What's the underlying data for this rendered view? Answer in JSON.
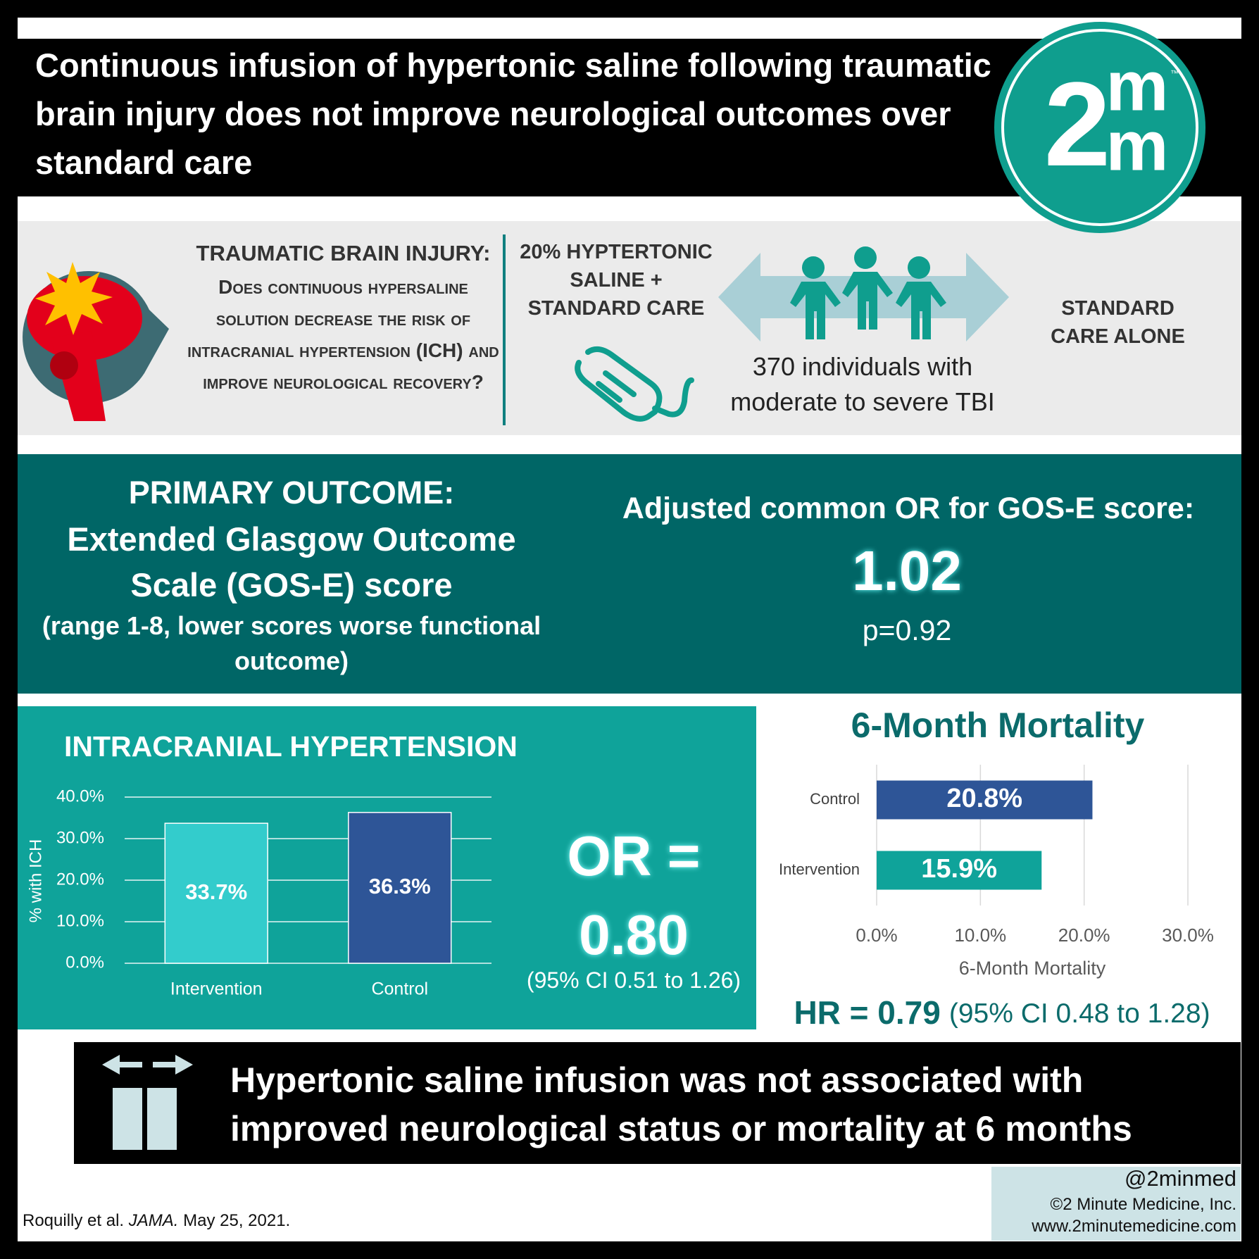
{
  "header": {
    "title": "Continuous infusion of hypertonic saline following traumatic brain injury does not improve neurological outcomes over standard care"
  },
  "logo": {
    "digit": "2",
    "top": "m",
    "bottom": "m",
    "mark": "™"
  },
  "question": {
    "heading": "TRAUMATIC BRAIN INJURY:",
    "text": "Does continuous hypersaline solution decrease the risk of intracranial hypertension (ICH) and improve neurological recovery?"
  },
  "design": {
    "intervention": "20% HYPTERTONIC SALINE + STANDARD CARE",
    "population": "370 individuals with moderate to severe TBI",
    "control": "STANDARD CARE ALONE"
  },
  "primary": {
    "heading": "PRIMARY OUTCOME:",
    "measure": "Extended Glasgow Outcome Scale (GOS-E) score",
    "note": "(range 1-8, lower scores worse functional outcome)",
    "result_label": "Adjusted common OR for GOS-E score:",
    "result": "1.02",
    "p": "p=0.92"
  },
  "chart_data": [
    {
      "type": "bar",
      "title": "INTRACRANIAL HYPERTENSION",
      "y_label": "% with ICH",
      "categories": [
        "Intervention",
        "Control"
      ],
      "values": [
        33.7,
        36.3
      ],
      "value_labels": [
        "33.7%",
        "36.3%"
      ],
      "colors": [
        "#33cccc",
        "#2e5597"
      ],
      "ylim": [
        0,
        40
      ],
      "yticks": [
        {
          "value": 0,
          "label": "0.0%"
        },
        {
          "value": 10,
          "label": "10.0%"
        },
        {
          "value": 20,
          "label": "20.0%"
        },
        {
          "value": 30,
          "label": "30.0%"
        },
        {
          "value": 40,
          "label": "40.0%"
        }
      ],
      "grid": true,
      "annotation": "OR = 0.80",
      "ci": "(95% CI 0.51 to 1.26)"
    },
    {
      "type": "barh",
      "title": "6-Month Mortality",
      "x_label": "6-Month Mortality",
      "categories": [
        "Control",
        "Intervention"
      ],
      "values": [
        20.8,
        15.9
      ],
      "value_labels": [
        "20.8%",
        "15.9%"
      ],
      "colors": [
        "#2e5597",
        "#0fa39a"
      ],
      "xlim": [
        0,
        30
      ],
      "xticks": [
        {
          "value": 0,
          "label": "0.0%"
        },
        {
          "value": 10,
          "label": "10.0%"
        },
        {
          "value": 20,
          "label": "20.0%"
        },
        {
          "value": 30,
          "label": "30.0%"
        }
      ],
      "grid": true,
      "annotation": "HR = 0.79",
      "ci": "(95% CI 0.48 to 1.28)"
    }
  ],
  "conclusion": {
    "text": "Hypertonic saline infusion was not associated with improved neurological status or mortality at 6 months"
  },
  "footer": {
    "authors": "Roquilly et al.",
    "journal": "JAMA.",
    "date": "May 25, 2021.",
    "handle": "@2minmed",
    "copyright": "©2 Minute Medicine, Inc.",
    "website": "www.2minutemedicine.com"
  }
}
